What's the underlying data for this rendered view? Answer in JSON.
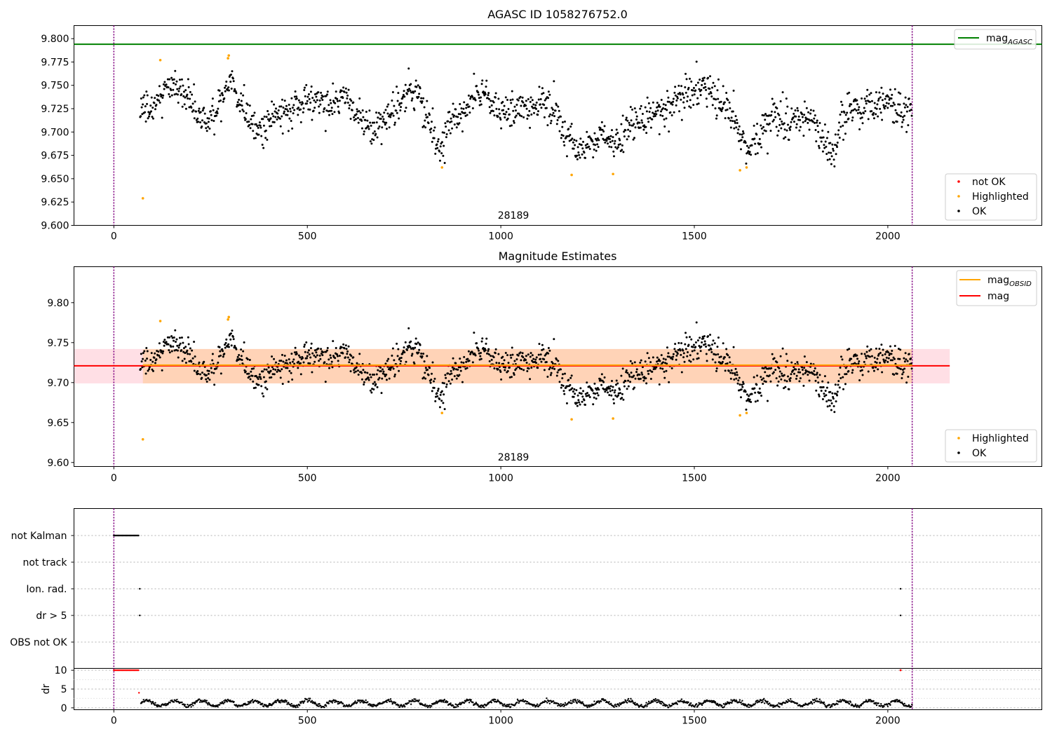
{
  "chart_data": [
    {
      "id": "magnitudes",
      "type": "scatter",
      "title": "AGASC ID 1058276752.0",
      "xlim": [
        -103,
        2398
      ],
      "ylim": [
        9.6,
        9.814
      ],
      "x_ticks": [
        0,
        500,
        1000,
        1500,
        2000
      ],
      "y_ticks": [
        9.6,
        9.625,
        9.65,
        9.675,
        9.7,
        9.725,
        9.75,
        9.775,
        9.8
      ],
      "y_tick_decimals": 3,
      "obsid_annotation": {
        "x": 1030,
        "text": "28189"
      },
      "vlines": [
        0,
        2063
      ],
      "reference_line": {
        "name_main": "mag",
        "name_sub": "AGASC",
        "y": 9.794,
        "color": "#008000"
      },
      "legend_top": [
        {
          "label": "mag",
          "sub": "AGASC",
          "color": "#008000"
        }
      ],
      "legend_bottom": [
        {
          "label": "not OK",
          "color": "#ff0000"
        },
        {
          "label": "Highlighted",
          "color": "#ffa500"
        },
        {
          "label": "OK",
          "color": "#000000"
        }
      ],
      "colors": {
        "ok": "#000000",
        "highlighted": "#ffa500",
        "not_ok": "#ff0000",
        "vline": "#800080"
      },
      "highlighted_points": [
        [
          75,
          9.629
        ],
        [
          120,
          9.777
        ],
        [
          295,
          9.779
        ],
        [
          297,
          9.782
        ],
        [
          848,
          9.662
        ],
        [
          1183,
          9.654
        ],
        [
          1290,
          9.655
        ],
        [
          1618,
          9.659
        ],
        [
          1635,
          9.662
        ]
      ]
    },
    {
      "id": "magnitude-estimates",
      "type": "scatter",
      "title": "Magnitude Estimates",
      "xlim": [
        -103,
        2398
      ],
      "ylim": [
        9.595,
        9.845
      ],
      "x_ticks": [
        0,
        500,
        1000,
        1500,
        2000
      ],
      "y_ticks": [
        9.6,
        9.65,
        9.7,
        9.75,
        9.8
      ],
      "y_tick_decimals": 2,
      "obsid_annotation": {
        "x": 1030,
        "text": "28189"
      },
      "vlines": [
        0,
        2063
      ],
      "mag": {
        "y": 9.721,
        "band_low": 9.699,
        "band_high": 9.742,
        "x_end": 2160,
        "color": "#ff0000"
      },
      "mag_obsid": {
        "y": 9.721,
        "band_low": 9.699,
        "band_high": 9.742,
        "x_start": 75,
        "x_end": 2063,
        "color": "#ffa500"
      },
      "legend_top": [
        {
          "label": "mag",
          "sub": "OBSID",
          "color": "#ffa500"
        },
        {
          "label": "mag",
          "sub": "",
          "color": "#ff0000"
        }
      ],
      "legend_bottom": [
        {
          "label": "Highlighted",
          "color": "#ffa500"
        },
        {
          "label": "OK",
          "color": "#000000"
        }
      ],
      "highlighted_points": [
        [
          75,
          9.629
        ],
        [
          120,
          9.777
        ],
        [
          295,
          9.779
        ],
        [
          297,
          9.782
        ],
        [
          848,
          9.662
        ],
        [
          1183,
          9.654
        ],
        [
          1290,
          9.655
        ],
        [
          1618,
          9.659
        ],
        [
          1635,
          9.662
        ]
      ]
    },
    {
      "id": "flags",
      "type": "scatter",
      "xlim": [
        -103,
        2398
      ],
      "categories": [
        "not Kalman",
        "not track",
        "Ion. rad.",
        "dr > 5",
        "OBS not OK"
      ],
      "flag_points": {
        "not Kalman": {
          "x_range": [
            0,
            65
          ]
        },
        "Ion. rad.": {
          "x": [
            67,
            2033
          ]
        },
        "dr > 5": {
          "x": [
            67,
            2033
          ]
        }
      },
      "vlines": [
        0,
        2063
      ]
    },
    {
      "id": "dr",
      "type": "scatter",
      "ylabel": "dr",
      "xlim": [
        -103,
        2398
      ],
      "ylim": [
        -0.5,
        10.5
      ],
      "x_ticks": [
        0,
        500,
        1000,
        1500,
        2000
      ],
      "y_ticks": [
        0,
        5,
        10
      ],
      "vlines": [
        0,
        2063
      ],
      "capped_points": {
        "x_range": [
          0,
          65
        ],
        "y": 10,
        "color": "#ff0000"
      },
      "capped_extra": [
        [
          2033,
          10
        ]
      ],
      "early_points": [
        [
          65,
          4.0
        ],
        [
          70,
          1.2
        ],
        [
          72,
          1.5
        ]
      ]
    }
  ]
}
